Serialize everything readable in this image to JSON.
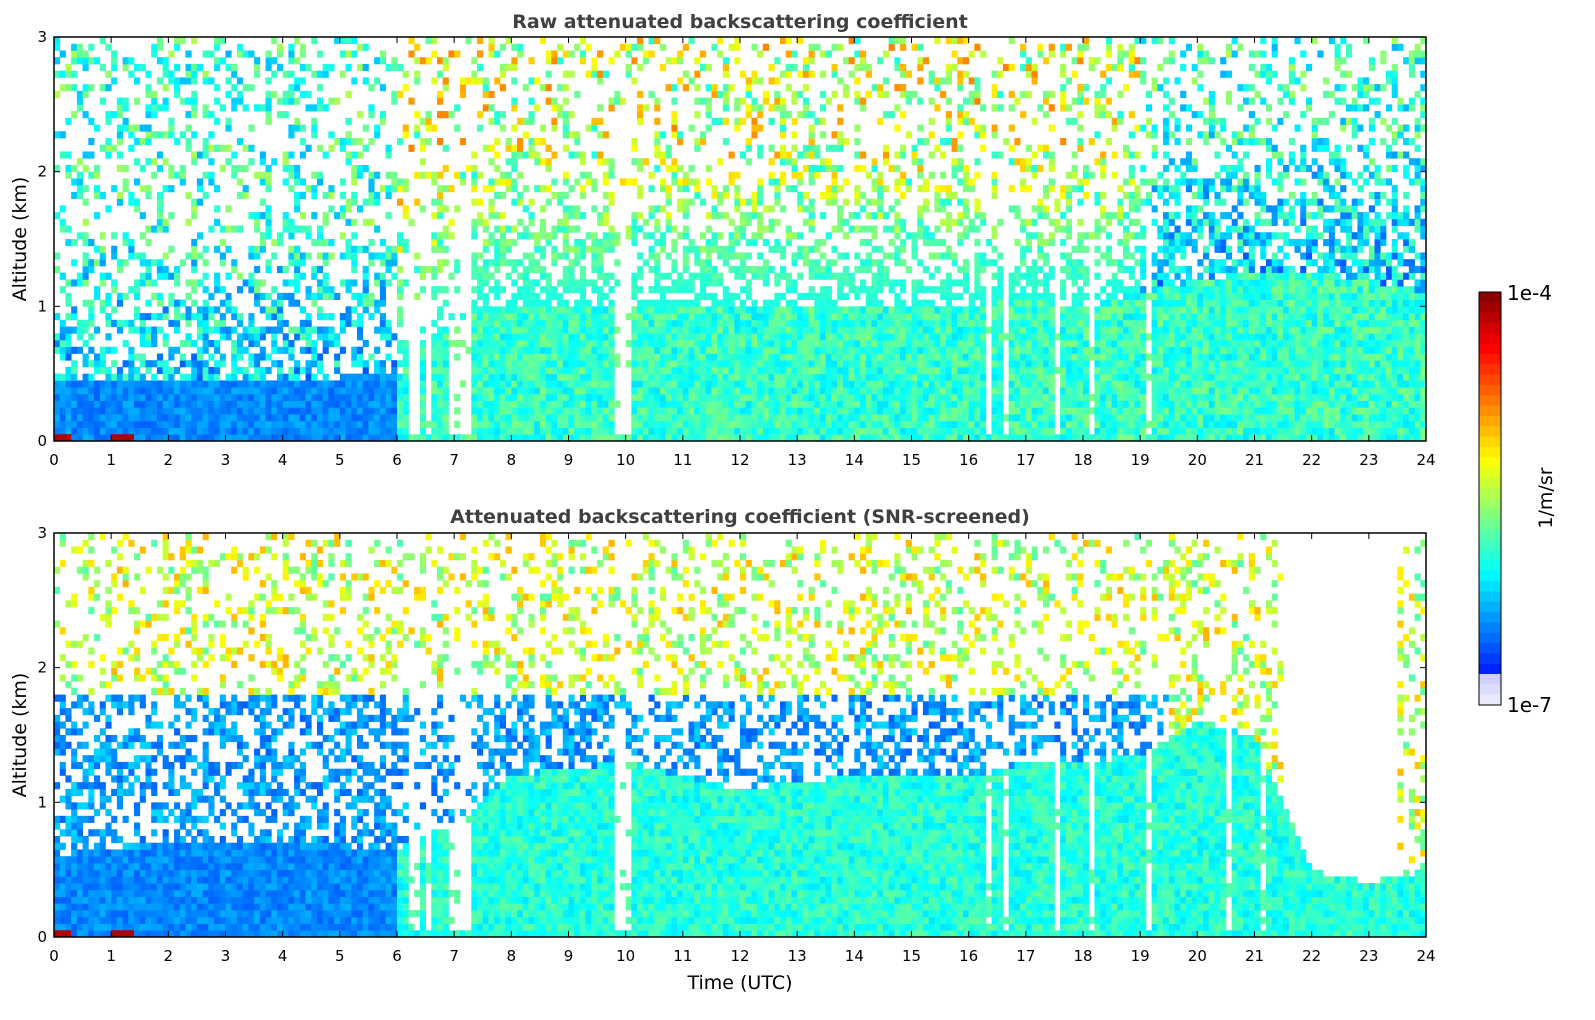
{
  "chart_data": [
    {
      "type": "heatmap",
      "title": "Raw attenuated backscattering coefficient",
      "xlabel": "",
      "ylabel": "Altitude (km)",
      "xlim": [
        0,
        24
      ],
      "ylim": [
        0,
        3
      ],
      "xticks": [
        "0",
        "1",
        "2",
        "3",
        "4",
        "5",
        "6",
        "7",
        "8",
        "9",
        "10",
        "11",
        "12",
        "13",
        "14",
        "15",
        "16",
        "17",
        "18",
        "19",
        "20",
        "21",
        "22",
        "23",
        "24"
      ],
      "yticks": [
        "0",
        "1",
        "2",
        "3"
      ],
      "colorbar": {
        "label": "1/m/sr",
        "min_label": "1e-7",
        "max_label": "1e-4",
        "scale": "log",
        "min": 1e-07,
        "max": 0.0001
      },
      "boundary_layer_top_km": {
        "time_h": [
          0,
          2,
          4,
          6,
          7,
          8,
          10,
          12,
          14,
          16,
          17,
          18,
          19,
          20,
          21,
          22,
          23,
          24
        ],
        "height_km": [
          0.45,
          0.45,
          0.45,
          0.5,
          0.9,
          1.0,
          1.0,
          1.0,
          1.0,
          1.0,
          1.05,
          1.0,
          1.1,
          1.2,
          1.25,
          1.25,
          1.2,
          1.1
        ]
      },
      "dropout_times_h": [
        6.3,
        6.5,
        6.9,
        7.0,
        7.1,
        7.2,
        9.8,
        9.9,
        10.0,
        10.1,
        10.3,
        10.5,
        16.3,
        16.4,
        16.5,
        16.6,
        17.2,
        17.5,
        17.6,
        17.8,
        18.0,
        18.1,
        19.2,
        19.5,
        19.7
      ],
      "surface_hotspots_h": [
        [
          0.0,
          0.3
        ],
        [
          1.0,
          1.4
        ]
      ]
    },
    {
      "type": "heatmap",
      "title": "Attenuated backscattering coefficient (SNR-screened)",
      "xlabel": "Time (UTC)",
      "ylabel": "Altitude (km)",
      "xlim": [
        0,
        24
      ],
      "ylim": [
        0,
        3
      ],
      "xticks": [
        "0",
        "1",
        "2",
        "3",
        "4",
        "5",
        "6",
        "7",
        "8",
        "9",
        "10",
        "11",
        "12",
        "13",
        "14",
        "15",
        "16",
        "17",
        "18",
        "19",
        "20",
        "21",
        "22",
        "23",
        "24"
      ],
      "yticks": [
        "0",
        "1",
        "2",
        "3"
      ],
      "colorbar": {
        "label": "1/m/sr",
        "min_label": "1e-7",
        "max_label": "1e-4",
        "scale": "log",
        "min": 1e-07,
        "max": 0.0001
      },
      "boundary_layer_top_km": {
        "time_h": [
          0,
          2,
          4,
          6,
          7,
          8,
          10,
          12,
          14,
          16,
          17,
          18,
          19,
          20,
          21,
          22,
          23,
          24
        ],
        "height_km": [
          0.6,
          0.7,
          0.7,
          0.65,
          0.85,
          1.2,
          1.3,
          1.1,
          1.2,
          1.2,
          1.3,
          1.3,
          1.35,
          1.6,
          1.5,
          0.5,
          0.4,
          0.5
        ]
      },
      "screened_cloud_band_km": [
        0.5,
        1.8
      ],
      "screened_empty_region": {
        "time_h": [
          21.5,
          23.5
        ],
        "above_km": 0.6
      },
      "dropout_times_h": [
        6.3,
        6.5,
        6.9,
        7.0,
        7.1,
        7.2,
        9.8,
        9.9,
        10.0,
        10.1,
        10.3,
        10.5,
        16.3,
        16.4,
        16.5,
        16.6,
        17.2,
        17.5,
        17.6,
        17.8,
        18.0,
        18.1,
        19.2,
        19.5,
        19.7,
        20.2,
        20.5,
        20.8,
        21.1
      ],
      "surface_hotspots_h": [
        [
          0.0,
          0.3
        ],
        [
          1.0,
          1.4
        ]
      ]
    }
  ]
}
